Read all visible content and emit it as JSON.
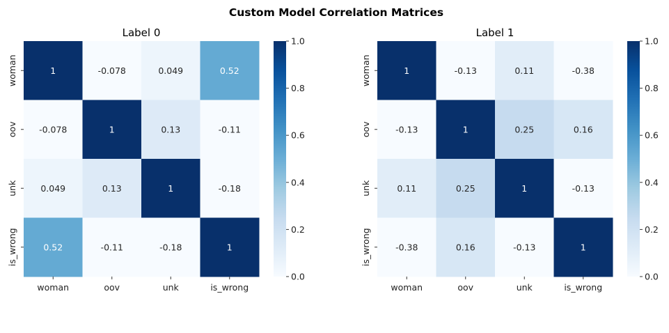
{
  "figure_title": "Custom Model Correlation Matrices",
  "chart_data": [
    {
      "type": "heatmap",
      "title": "Label 0",
      "x_categories": [
        "woman",
        "oov",
        "unk",
        "is_wrong"
      ],
      "y_categories": [
        "woman",
        "oov",
        "unk",
        "is_wrong"
      ],
      "values": [
        [
          1,
          -0.078,
          0.049,
          0.52
        ],
        [
          -0.078,
          1,
          0.13,
          -0.11
        ],
        [
          0.049,
          0.13,
          1,
          -0.18
        ],
        [
          0.52,
          -0.11,
          -0.18,
          1
        ]
      ],
      "annotations": [
        [
          "1",
          "-0.078",
          "0.049",
          "0.52"
        ],
        [
          "-0.078",
          "1",
          "0.13",
          "-0.11"
        ],
        [
          "0.049",
          "0.13",
          "1",
          "-0.18"
        ],
        [
          "0.52",
          "-0.11",
          "-0.18",
          "1"
        ]
      ],
      "colormap": "Blues",
      "vmin": 0,
      "vmax": 1,
      "colorbar_ticks": [
        "0.0",
        "0.2",
        "0.4",
        "0.6",
        "0.8",
        "1.0"
      ]
    },
    {
      "type": "heatmap",
      "title": "Label 1",
      "x_categories": [
        "woman",
        "oov",
        "unk",
        "is_wrong"
      ],
      "y_categories": [
        "woman",
        "oov",
        "unk",
        "is_wrong"
      ],
      "values": [
        [
          1,
          -0.13,
          0.11,
          -0.38
        ],
        [
          -0.13,
          1,
          0.25,
          0.16
        ],
        [
          0.11,
          0.25,
          1,
          -0.13
        ],
        [
          -0.38,
          0.16,
          -0.13,
          1
        ]
      ],
      "annotations": [
        [
          "1",
          "-0.13",
          "0.11",
          "-0.38"
        ],
        [
          "-0.13",
          "1",
          "0.25",
          "0.16"
        ],
        [
          "0.11",
          "0.25",
          "1",
          "-0.13"
        ],
        [
          "-0.38",
          "0.16",
          "-0.13",
          "1"
        ]
      ],
      "colormap": "Blues",
      "vmin": 0,
      "vmax": 1,
      "colorbar_ticks": [
        "0.0",
        "0.2",
        "0.4",
        "0.6",
        "0.8",
        "1.0"
      ]
    }
  ],
  "colors": {
    "blues_stops": [
      "#f7fbff",
      "#deebf7",
      "#c6dbef",
      "#9ecae1",
      "#6baed6",
      "#4292c6",
      "#2171b5",
      "#08519c",
      "#08306b"
    ],
    "annotation_dark": "#262626",
    "annotation_light": "#ffffff"
  }
}
